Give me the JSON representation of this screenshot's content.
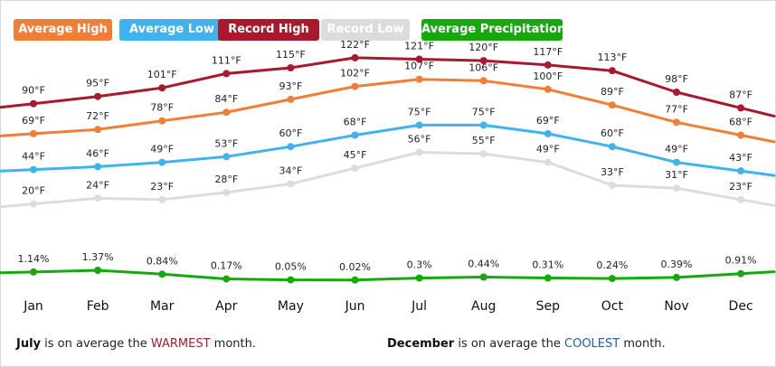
{
  "legend": [
    {
      "label": "Average High",
      "color": "#f07f35"
    },
    {
      "label": "Average Low",
      "color": "#40b3ee"
    },
    {
      "label": "Record High",
      "color": "#a8192d"
    },
    {
      "label": "Record Low",
      "color": "#dcdcdc"
    },
    {
      "label": "Average Precipitation",
      "color": "#17a80d"
    }
  ],
  "chart_data": {
    "type": "line",
    "categories": [
      "Jan",
      "Feb",
      "Mar",
      "Apr",
      "May",
      "Jun",
      "Jul",
      "Aug",
      "Sep",
      "Oct",
      "Nov",
      "Dec"
    ],
    "series": [
      {
        "name": "Average High",
        "color": "#f07f35",
        "unit": "°F",
        "values": [
          69,
          72,
          78,
          84,
          93,
          102,
          107,
          106,
          100,
          89,
          77,
          68
        ],
        "labels": [
          "69°F",
          "72°F",
          "78°F",
          "84°F",
          "93°F",
          "102°F",
          "107°F",
          "106°F",
          "100°F",
          "89°F",
          "77°F",
          "68°F"
        ]
      },
      {
        "name": "Average Low",
        "color": "#40b3ee",
        "unit": "°F",
        "values": [
          44,
          46,
          49,
          53,
          60,
          68,
          75,
          75,
          69,
          60,
          49,
          43
        ],
        "labels": [
          "44°F",
          "46°F",
          "49°F",
          "53°F",
          "60°F",
          "68°F",
          "75°F",
          "75°F",
          "69°F",
          "60°F",
          "49°F",
          "43°F"
        ]
      },
      {
        "name": "Record High",
        "color": "#a8192d",
        "unit": "°F",
        "values": [
          90,
          95,
          101,
          111,
          115,
          122,
          121,
          120,
          117,
          113,
          98,
          87
        ],
        "labels": [
          "90°F",
          "95°F",
          "101°F",
          "111°F",
          "115°F",
          "122°F",
          "121°F",
          "120°F",
          "117°F",
          "113°F",
          "98°F",
          "87°F"
        ]
      },
      {
        "name": "Record Low",
        "color": "#dcdcdc",
        "unit": "°F",
        "values": [
          20,
          24,
          23,
          28,
          34,
          45,
          56,
          55,
          49,
          33,
          31,
          23
        ],
        "labels": [
          "20°F",
          "24°F",
          "23°F",
          "28°F",
          "34°F",
          "45°F",
          "56°F",
          "55°F",
          "49°F",
          "33°F",
          "31°F",
          "23°F"
        ]
      },
      {
        "name": "Average Precipitation",
        "color": "#17a80d",
        "unit": "%",
        "values": [
          1.14,
          1.37,
          0.84,
          0.17,
          0.05,
          0.02,
          0.3,
          0.44,
          0.31,
          0.24,
          0.39,
          0.91
        ],
        "labels": [
          "1.14%",
          "1.37%",
          "0.84%",
          "0.17%",
          "0.05%",
          "0.02%",
          "0.3%",
          "0.44%",
          "0.31%",
          "0.24%",
          "0.39%",
          "0.91%"
        ]
      }
    ],
    "grid": false,
    "legend_position": "top-left"
  },
  "footer": {
    "left_month": "July",
    "left_mid": " is on average the ",
    "left_keyword": "WARMEST",
    "left_tail": " month.",
    "right_month": "December",
    "right_mid": " is on average the ",
    "right_keyword": "COOLEST",
    "right_tail": " month."
  }
}
